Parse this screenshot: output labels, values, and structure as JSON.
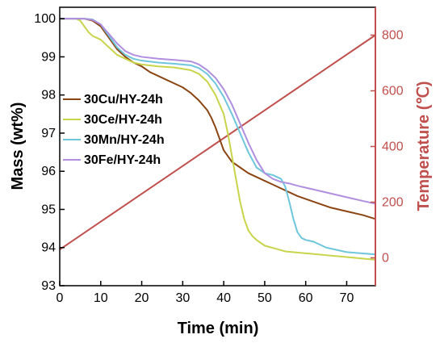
{
  "chart_data": {
    "type": "line",
    "xlabel": "Time (min)",
    "ylabel": "Mass (wt%)",
    "y2label": "Temperature (℃)",
    "xlim": [
      0,
      77
    ],
    "ylim": [
      93,
      100.3
    ],
    "y2lim": [
      -100,
      900
    ],
    "x_ticks": [
      "0",
      "10",
      "20",
      "30",
      "40",
      "50",
      "60",
      "70"
    ],
    "y_ticks": [
      "93",
      "94",
      "95",
      "96",
      "97",
      "98",
      "99",
      "100"
    ],
    "y2_ticks": [
      "0",
      "200",
      "400",
      "600",
      "800"
    ],
    "legend_position": "center-left",
    "series": [
      {
        "name": "30Cu/HY-24h",
        "color": "#8b4513",
        "x": [
          0,
          4,
          6,
          8,
          10,
          12,
          14,
          16,
          18,
          20,
          22,
          24,
          26,
          28,
          30,
          32,
          34,
          36,
          37,
          38,
          39,
          40,
          42,
          44,
          46,
          48,
          50,
          52,
          55,
          58,
          62,
          66,
          70,
          74,
          77
        ],
        "y": [
          100,
          100,
          100,
          99.95,
          99.8,
          99.5,
          99.2,
          99.0,
          98.85,
          98.75,
          98.6,
          98.5,
          98.4,
          98.3,
          98.2,
          98.05,
          97.85,
          97.6,
          97.4,
          97.15,
          96.85,
          96.55,
          96.25,
          96.1,
          95.95,
          95.85,
          95.75,
          95.65,
          95.5,
          95.35,
          95.2,
          95.05,
          94.95,
          94.85,
          94.75
        ]
      },
      {
        "name": "30Ce/HY-24h",
        "color": "#c8d44a",
        "x": [
          0,
          4,
          5,
          6,
          7,
          8,
          10,
          12,
          14,
          16,
          18,
          20,
          24,
          28,
          32,
          34,
          36,
          38,
          40,
          41,
          42,
          43,
          44,
          45,
          46,
          47,
          48,
          50,
          55,
          60,
          65,
          70,
          77
        ],
        "y": [
          100,
          100,
          99.95,
          99.8,
          99.65,
          99.55,
          99.45,
          99.25,
          99.05,
          98.95,
          98.85,
          98.8,
          98.75,
          98.72,
          98.65,
          98.55,
          98.35,
          98.0,
          97.5,
          97.0,
          96.4,
          95.8,
          95.2,
          94.75,
          94.45,
          94.3,
          94.2,
          94.05,
          93.9,
          93.85,
          93.8,
          93.75,
          93.68
        ]
      },
      {
        "name": "30Mn/HY-24h",
        "color": "#6ec6dc",
        "x": [
          0,
          6,
          8,
          10,
          12,
          14,
          16,
          18,
          20,
          24,
          28,
          32,
          34,
          36,
          38,
          40,
          42,
          44,
          46,
          48,
          50,
          52,
          54,
          55,
          56,
          57,
          58,
          59,
          60,
          62,
          65,
          70,
          77
        ],
        "y": [
          100,
          100,
          99.98,
          99.85,
          99.55,
          99.25,
          99.05,
          98.95,
          98.9,
          98.85,
          98.82,
          98.78,
          98.7,
          98.55,
          98.3,
          97.95,
          97.5,
          97.0,
          96.5,
          96.1,
          95.95,
          95.9,
          95.8,
          95.6,
          95.2,
          94.75,
          94.4,
          94.25,
          94.2,
          94.15,
          94.0,
          93.88,
          93.82
        ]
      },
      {
        "name": "30Fe/HY-24h",
        "color": "#b08ee0",
        "x": [
          0,
          6,
          8,
          10,
          12,
          14,
          16,
          18,
          20,
          24,
          28,
          32,
          34,
          36,
          38,
          40,
          42,
          44,
          46,
          48,
          50,
          52,
          54,
          56,
          58,
          62,
          66,
          70,
          74,
          77
        ],
        "y": [
          100,
          100,
          99.97,
          99.85,
          99.6,
          99.35,
          99.15,
          99.05,
          99.0,
          98.95,
          98.92,
          98.88,
          98.8,
          98.65,
          98.45,
          98.15,
          97.75,
          97.25,
          96.75,
          96.3,
          95.95,
          95.8,
          95.72,
          95.68,
          95.62,
          95.52,
          95.42,
          95.32,
          95.22,
          95.15
        ]
      }
    ],
    "temperature": {
      "color": "#c0504d",
      "x": [
        0,
        77
      ],
      "y": [
        30,
        800
      ]
    }
  }
}
